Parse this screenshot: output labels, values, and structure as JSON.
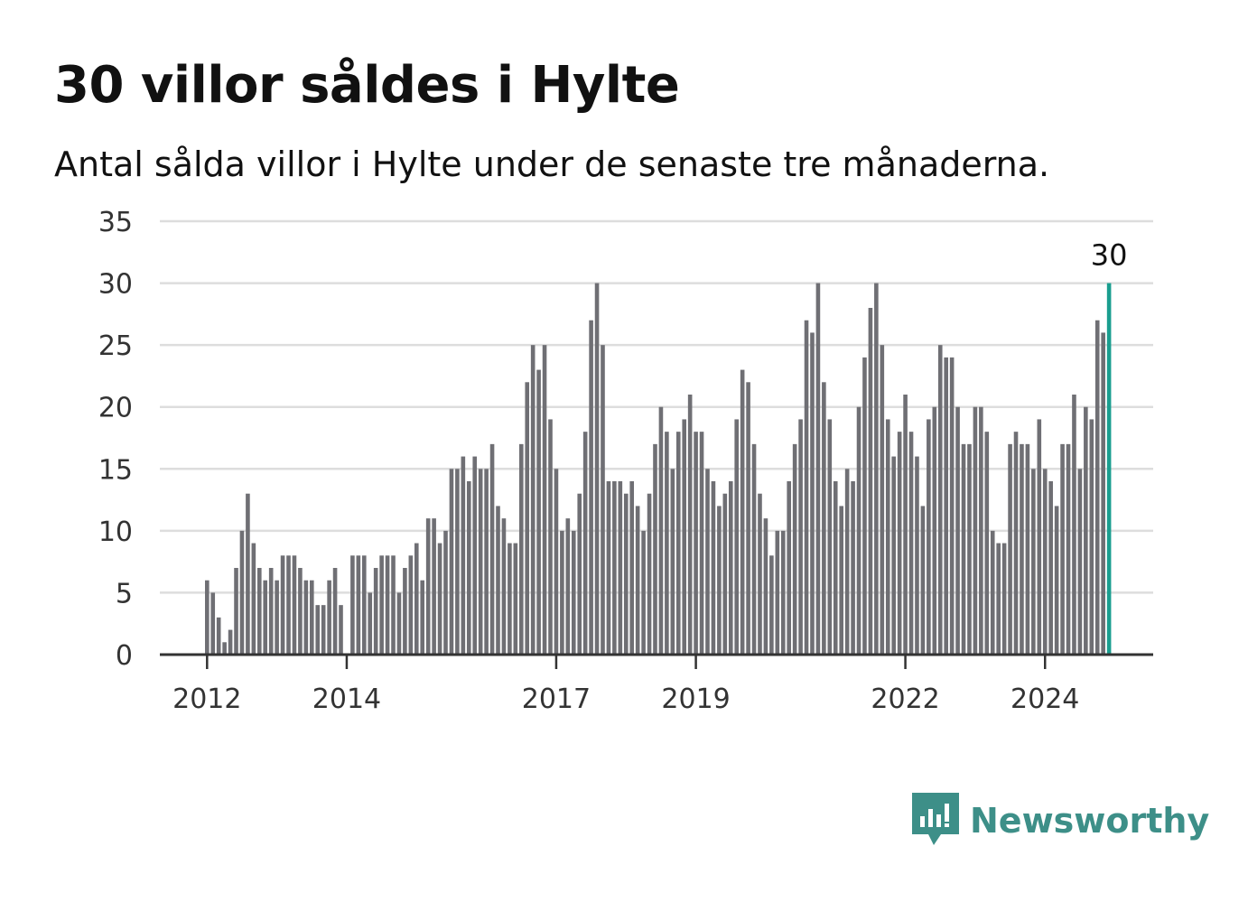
{
  "chart_data": {
    "type": "bar",
    "title": "30 villor såldes i Hylte",
    "subtitle": "Antal sålda villor i Hylte under de senaste tre månaderna.",
    "ylim": [
      0,
      35
    ],
    "yticks": [
      "0",
      "5",
      "10",
      "15",
      "20",
      "25",
      "30",
      "35"
    ],
    "xticks": [
      "2012",
      "2014",
      "2017",
      "2019",
      "2022",
      "2024"
    ],
    "grid": true,
    "highlight_label": "30",
    "colors": {
      "bar": "#6f6f74",
      "highlight": "#1a9e8f",
      "grid": "#dddddd",
      "axis": "#333333"
    },
    "values": [
      6,
      5,
      3,
      1,
      2,
      7,
      10,
      13,
      9,
      7,
      6,
      7,
      6,
      8,
      8,
      8,
      7,
      6,
      6,
      4,
      4,
      6,
      7,
      4,
      0,
      8,
      8,
      8,
      5,
      7,
      8,
      8,
      8,
      5,
      7,
      8,
      9,
      6,
      11,
      11,
      9,
      10,
      15,
      15,
      16,
      14,
      16,
      15,
      15,
      17,
      12,
      11,
      9,
      9,
      17,
      22,
      25,
      23,
      25,
      19,
      15,
      10,
      11,
      10,
      13,
      18,
      27,
      30,
      25,
      14,
      14,
      14,
      13,
      14,
      12,
      10,
      13,
      17,
      20,
      18,
      15,
      18,
      19,
      21,
      18,
      18,
      15,
      14,
      12,
      13,
      14,
      19,
      23,
      22,
      17,
      13,
      11,
      8,
      10,
      10,
      14,
      17,
      19,
      27,
      26,
      30,
      22,
      19,
      14,
      12,
      15,
      14,
      20,
      24,
      28,
      30,
      25,
      19,
      16,
      18,
      21,
      18,
      16,
      12,
      19,
      20,
      25,
      24,
      24,
      20,
      17,
      17,
      20,
      20,
      18,
      10,
      9,
      9,
      17,
      18,
      17,
      17,
      15,
      19,
      15,
      14,
      12,
      17,
      17,
      21,
      15,
      20,
      19,
      27,
      26,
      30
    ]
  },
  "brand": {
    "name": "Newsworthy",
    "icon": "newsworthy-logo-icon"
  }
}
